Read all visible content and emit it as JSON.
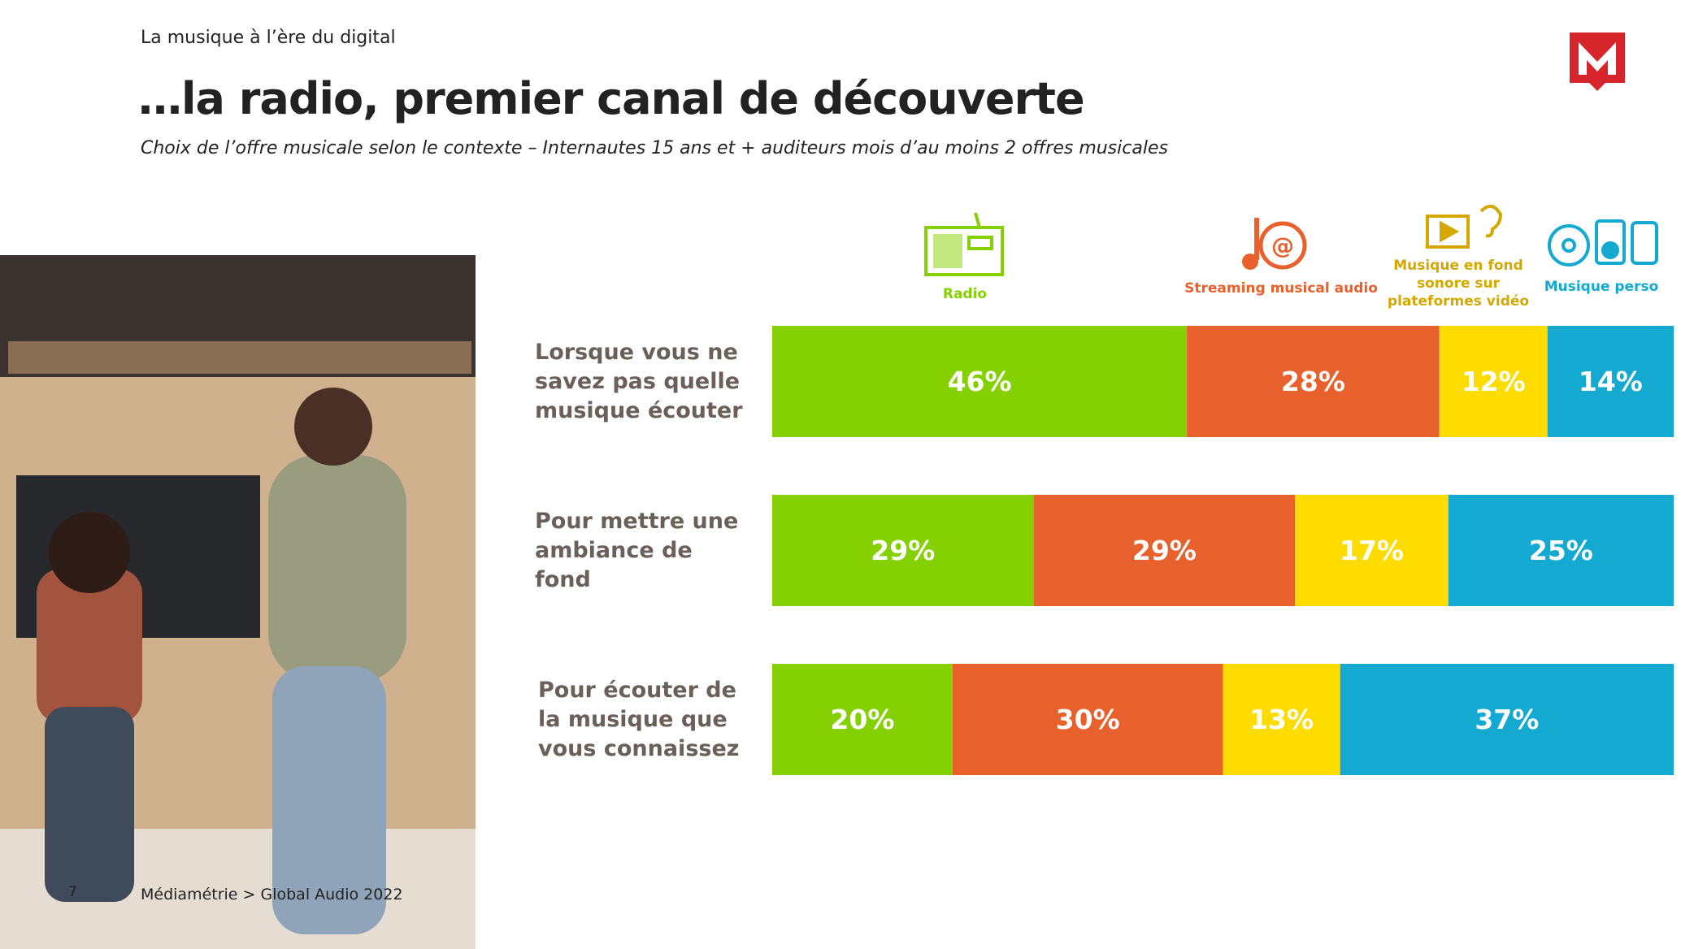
{
  "header": "La musique à l’ère du digital",
  "footer": "Médiamétrie > Global Audio 2022",
  "page_number": "7",
  "chart_data": {
    "type": "stacked-bar",
    "title": "…la radio, premier canal de découverte",
    "subtitle": "Choix de l’offre musicale selon le contexte – Internautes 15 ans et + auditeurs mois d’au moins 2 offres musicales",
    "categories": [
      "Lorsque vous ne savez pas quelle musique écouter",
      "Pour mettre une ambiance de fond",
      "Pour écouter de la musique que vous connaissez"
    ],
    "series": [
      {
        "name": "Radio",
        "color": "#84d000",
        "values": [
          46,
          29,
          20
        ],
        "value_labels": [
          "46%",
          "29%",
          "20%"
        ]
      },
      {
        "name": "Streaming musical audio",
        "color": "#e8612c",
        "values": [
          28,
          29,
          30
        ],
        "value_labels": [
          "28%",
          "29%",
          "30%"
        ]
      },
      {
        "name": "Musique en fond sonore sur plateformes vidéo",
        "color": "#ffdc00",
        "values": [
          12,
          17,
          13
        ],
        "value_labels": [
          "12%",
          "17%",
          "13%"
        ]
      },
      {
        "name": "Musique perso",
        "color": "#14a9d0",
        "values": [
          14,
          25,
          37
        ],
        "value_labels": [
          "14%",
          "25%",
          "37%"
        ]
      }
    ]
  }
}
